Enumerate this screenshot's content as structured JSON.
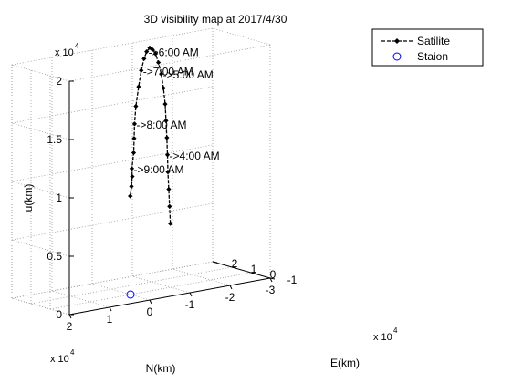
{
  "chart_data": {
    "type": "line3d",
    "title": "3D visibility map at 2017/4/30",
    "xlabel": "N(km)",
    "ylabel": "E(km)",
    "zlabel": "u(km)",
    "x_multiplier": "x 10",
    "x_multiplier_exp": "4",
    "y_multiplier": "x 10",
    "y_multiplier_exp": "4",
    "z_multiplier": "x 10",
    "z_multiplier_exp": "4",
    "xlim": [
      -3,
      2
    ],
    "ylim": [
      -1,
      2
    ],
    "zlim": [
      0,
      2
    ],
    "xticks": [
      2,
      1,
      0,
      -1,
      -2,
      -3
    ],
    "yticks": [
      -1,
      0,
      1,
      2
    ],
    "zticks": [
      0,
      0.5,
      1,
      1.5,
      2
    ],
    "xtick_labels": [
      "2",
      "1",
      "0",
      "-1",
      "-2",
      "-3"
    ],
    "ytick_labels": [
      "-1",
      "0",
      "1",
      "2"
    ],
    "ztick_labels": [
      "0",
      "0.5",
      "1",
      "1.5",
      "2"
    ],
    "grid": true,
    "box": true,
    "legend_position": "top-right",
    "colors": {
      "satellite": "#000000",
      "station": "#0000ff"
    },
    "series": [
      {
        "name": "Satilite",
        "marker": "diamond",
        "points": [
          [
            -1.9,
            1.9,
            0.4
          ],
          [
            -1.87,
            1.88,
            0.55
          ],
          [
            -1.84,
            1.86,
            0.7
          ],
          [
            -1.81,
            1.84,
            0.85
          ],
          [
            -1.79,
            1.82,
            1.0
          ],
          [
            -1.76,
            1.79,
            1.15
          ],
          [
            -1.72,
            1.75,
            1.3
          ],
          [
            -1.66,
            1.67,
            1.45
          ],
          [
            -1.55,
            1.53,
            1.6
          ],
          [
            -1.4,
            1.33,
            1.74
          ],
          [
            -1.22,
            1.1,
            1.86
          ],
          [
            -1.02,
            0.83,
            1.96
          ],
          [
            -0.82,
            0.57,
            2.02
          ],
          [
            -0.63,
            0.32,
            2.06
          ],
          [
            -0.44,
            0.08,
            2.05
          ],
          [
            -0.27,
            -0.14,
            2.01
          ],
          [
            -0.1,
            -0.35,
            1.93
          ],
          [
            0.06,
            -0.55,
            1.81
          ],
          [
            0.21,
            -0.72,
            1.66
          ],
          [
            0.3,
            -0.84,
            1.52
          ],
          [
            0.33,
            -0.88,
            1.4
          ],
          [
            0.36,
            -0.92,
            1.28
          ],
          [
            0.42,
            -0.95,
            1.15
          ],
          [
            0.4,
            -0.93,
            1.08
          ],
          [
            0.44,
            -0.97,
            1.0
          ],
          [
            0.48,
            -0.99,
            0.92
          ]
        ]
      },
      {
        "name": "Staion",
        "marker": "circle",
        "points": [
          [
            0,
            0,
            0
          ]
        ]
      }
    ],
    "annotations": [
      {
        "text": "->4:00 AM",
        "at": [
          -1.79,
          1.82,
          1.0
        ]
      },
      {
        "text": "->5:00 AM",
        "at": [
          -1.4,
          1.33,
          1.74
        ]
      },
      {
        "text": "->6:00 AM",
        "at": [
          -0.44,
          0.08,
          2.05
        ]
      },
      {
        "text": "->7:00 AM",
        "at": [
          -0.1,
          -0.35,
          1.93
        ]
      },
      {
        "text": "->8:00 AM",
        "at": [
          0.3,
          -0.84,
          1.52
        ]
      },
      {
        "text": "->9:00 AM",
        "at": [
          0.42,
          -0.95,
          1.15
        ]
      }
    ]
  }
}
